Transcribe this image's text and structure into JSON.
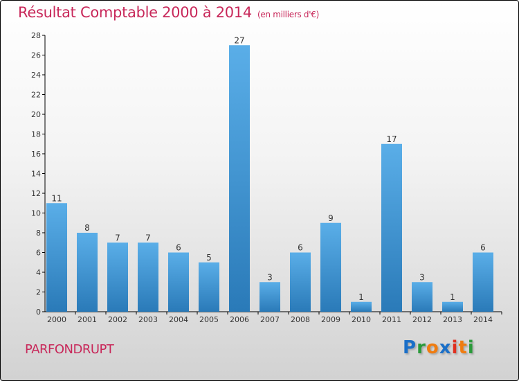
{
  "chart_data": {
    "type": "bar",
    "title": "Résultat Comptable 2000 à 2014",
    "subtitle": "(en milliers d'€)",
    "categories": [
      "2000",
      "2001",
      "2002",
      "2003",
      "2004",
      "2005",
      "2006",
      "2007",
      "2008",
      "2009",
      "2010",
      "2011",
      "2012",
      "2013",
      "2014"
    ],
    "values": [
      11,
      8,
      7,
      7,
      6,
      5,
      27,
      3,
      6,
      9,
      1,
      17,
      3,
      1,
      6
    ],
    "ylim": [
      0,
      28
    ],
    "yticks": [
      0,
      2,
      4,
      6,
      8,
      10,
      12,
      14,
      16,
      18,
      20,
      22,
      24,
      26,
      28
    ],
    "xlabel": "",
    "ylabel": "",
    "colors": {
      "bar_light": "#5aaee8",
      "bar_dark": "#2a7ab8",
      "title": "#c8285a"
    }
  },
  "footer": {
    "city": "PARFONDRUPT",
    "logo": "Proxiti"
  }
}
